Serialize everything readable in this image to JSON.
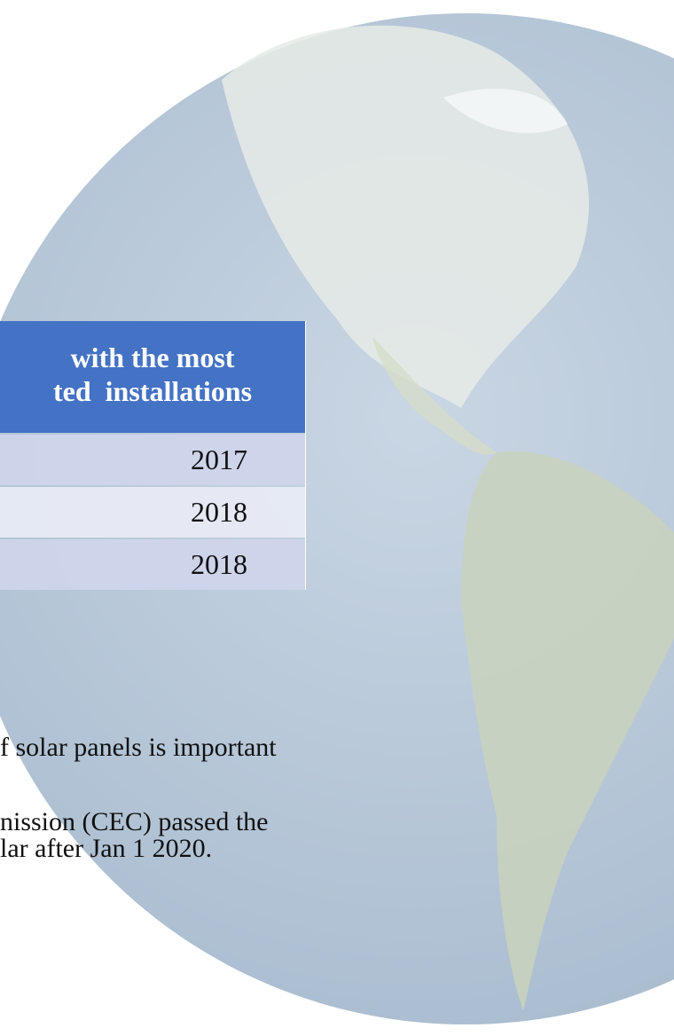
{
  "table": {
    "header": [
      "with the most",
      "ted  installations"
    ],
    "rows": [
      [
        "2017"
      ],
      [
        "2018"
      ],
      [
        "2018"
      ]
    ]
  },
  "body": {
    "lines": [
      "f solar panels is important",
      "nission (CEC) passed the",
      "lar after Jan 1 2020."
    ]
  }
}
